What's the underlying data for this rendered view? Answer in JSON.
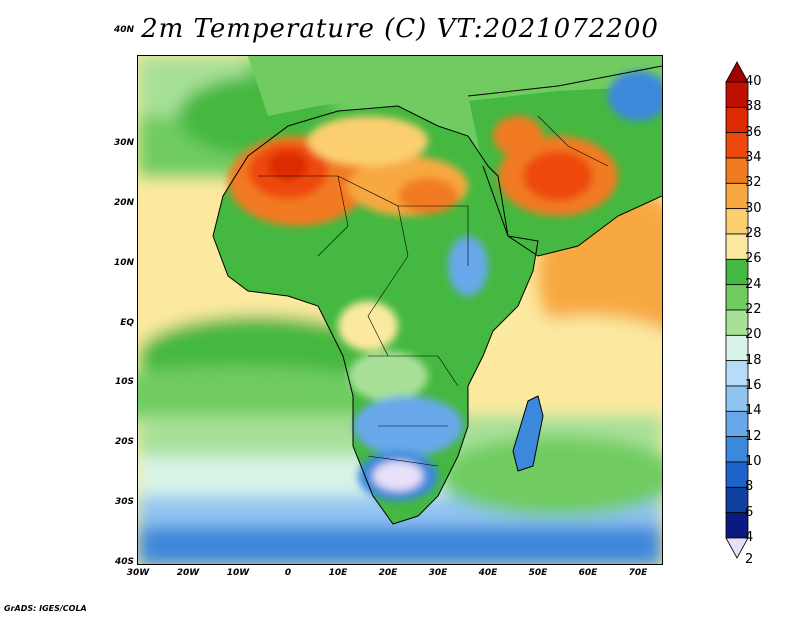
{
  "title": "2m Temperature (C) VT:2021072200",
  "credit": "GrADS: IGES/COLA",
  "map": {
    "region": "Africa and Middle East",
    "lon_range": [
      -30,
      75
    ],
    "lat_range": [
      -40,
      45
    ],
    "variable": "2m Temperature",
    "units": "C"
  },
  "lat_labels": [
    {
      "text": "40N",
      "lat": 40
    },
    {
      "text": "30N",
      "lat": 30
    },
    {
      "text": "20N",
      "lat": 20
    },
    {
      "text": "10N",
      "lat": 10
    },
    {
      "text": "EQ",
      "lat": 0
    },
    {
      "text": "10S",
      "lat": -10
    },
    {
      "text": "20S",
      "lat": -20
    },
    {
      "text": "30S",
      "lat": -30
    },
    {
      "text": "40S",
      "lat": -40
    }
  ],
  "lon_labels": [
    {
      "text": "30W",
      "lon": -30
    },
    {
      "text": "20W",
      "lon": -20
    },
    {
      "text": "10W",
      "lon": -10
    },
    {
      "text": "0",
      "lon": 0
    },
    {
      "text": "10E",
      "lon": 10
    },
    {
      "text": "20E",
      "lon": 20
    },
    {
      "text": "30E",
      "lon": 30
    },
    {
      "text": "40E",
      "lon": 40
    },
    {
      "text": "50E",
      "lon": 50
    },
    {
      "text": "60E",
      "lon": 60
    },
    {
      "text": "70E",
      "lon": 70
    }
  ],
  "colorbar": {
    "levels": [
      "40",
      "38",
      "36",
      "34",
      "32",
      "30",
      "28",
      "26",
      "24",
      "22",
      "20",
      "18",
      "16",
      "14",
      "12",
      "10",
      "8",
      "6",
      "4",
      "2"
    ],
    "colors": [
      "#a00000",
      "#c01000",
      "#dd2a00",
      "#ee4a10",
      "#f27a20",
      "#f8a840",
      "#fbcf70",
      "#fbe9a0",
      "#44b840",
      "#70cc60",
      "#a8e098",
      "#d8f4e8",
      "#b8dcf8",
      "#90c4f0",
      "#68a8ea",
      "#3c88dc",
      "#1e64c8",
      "#1040a0",
      "#0a1a80",
      "#e8e0f8"
    ]
  }
}
